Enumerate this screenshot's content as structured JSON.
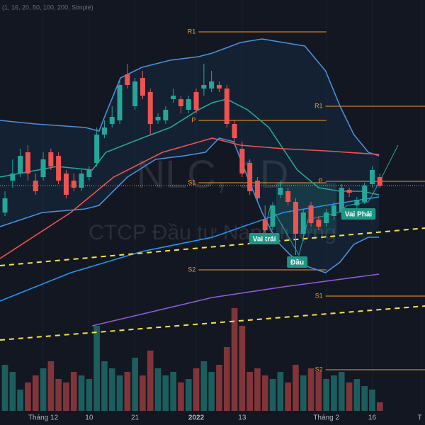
{
  "chart_data": {
    "type": "candlestick",
    "indicator_label": "(1, 16, 20, 50, 100, 200, Simple)",
    "watermark": "NLC, 1D",
    "watermark_sub": "CTCP Đầu tư Năng lượng",
    "up_color": "#26a69a",
    "down_color": "#ef5350",
    "ylim": [
      0,
      580
    ],
    "xlim": [
      -0.65,
      54.9
    ],
    "open": [
      280,
      325,
      335,
      365,
      325,
      330,
      365,
      360,
      335,
      325,
      315,
      330,
      350,
      390,
      405,
      410,
      475,
      430,
      470,
      450,
      410,
      410,
      440,
      440,
      425,
      450,
      455,
      455,
      460,
      455,
      405,
      370,
      350,
      325,
      270,
      260,
      305,
      310,
      295,
      250,
      290,
      270,
      265,
      275,
      280,
      312,
      290,
      295,
      320,
      330
    ],
    "high": [
      310,
      355,
      370,
      375,
      335,
      365,
      370,
      365,
      340,
      335,
      340,
      345,
      400,
      410,
      430,
      465,
      490,
      470,
      480,
      455,
      420,
      430,
      455,
      445,
      445,
      455,
      490,
      480,
      465,
      460,
      410,
      380,
      355,
      330,
      290,
      295,
      325,
      315,
      300,
      285,
      295,
      275,
      285,
      295,
      320,
      315,
      302,
      322,
      345,
      335
    ],
    "low": [
      275,
      315,
      330,
      325,
      305,
      325,
      340,
      320,
      300,
      310,
      310,
      325,
      345,
      385,
      400,
      405,
      455,
      425,
      440,
      390,
      405,
      405,
      435,
      420,
      420,
      420,
      445,
      450,
      450,
      400,
      380,
      330,
      305,
      295,
      250,
      255,
      300,
      290,
      220,
      240,
      260,
      255,
      260,
      270,
      275,
      302,
      285,
      292,
      315,
      315
    ],
    "close": [
      300,
      335,
      360,
      335,
      310,
      355,
      345,
      325,
      305,
      315,
      335,
      340,
      390,
      400,
      415,
      460,
      460,
      465,
      445,
      405,
      415,
      425,
      445,
      430,
      440,
      425,
      460,
      465,
      455,
      405,
      385,
      335,
      310,
      300,
      255,
      290,
      315,
      295,
      250,
      280,
      265,
      260,
      280,
      290,
      315,
      308,
      298,
      318,
      340,
      318
    ],
    "volume": [
      65,
      55,
      30,
      40,
      50,
      60,
      70,
      45,
      40,
      55,
      50,
      45,
      120,
      70,
      60,
      50,
      55,
      75,
      50,
      85,
      60,
      50,
      55,
      40,
      45,
      60,
      70,
      55,
      65,
      90,
      145,
      120,
      55,
      60,
      50,
      45,
      55,
      40,
      65,
      50,
      60,
      55,
      45,
      50,
      55,
      40,
      45,
      35,
      30,
      12
    ],
    "x_labels": [
      {
        "x": 5,
        "label": "Tháng 12"
      },
      {
        "x": 11,
        "label": "10"
      },
      {
        "x": 17,
        "label": "21"
      },
      {
        "x": 25,
        "label": "2022"
      },
      {
        "x": 31,
        "label": "13"
      },
      {
        "x": 42,
        "label": "Tháng 2"
      },
      {
        "x": 48,
        "label": "16"
      },
      {
        "x": 54.5,
        "label": "T"
      }
    ],
    "lines": [
      {
        "color": "#4a90d9",
        "dash": false,
        "x": [
          -0.65,
          4,
          10.5,
          12.3,
          13.2,
          15.1,
          17.9,
          21.6,
          25.3,
          27.1,
          30.8,
          33.6,
          36.4,
          39.2,
          41.9,
          43.8,
          45.6,
          47.5,
          48.9
        ],
        "values": [
          410,
          405,
          400,
          395,
          420,
          470,
          485,
          495,
          500,
          505,
          520,
          525,
          520,
          515,
          480,
          430,
          390,
          365,
          360
        ]
      },
      {
        "color": "#4a90d9",
        "dash": false,
        "x": [
          -0.65,
          4.9,
          10.5,
          12.3,
          16,
          19.7,
          23.4,
          26.2,
          28,
          29.9,
          31.7,
          33.6,
          35.5,
          37.3,
          39.2,
          41.9,
          43.8,
          45.6,
          47.5,
          48.9
        ],
        "values": [
          260,
          280,
          285,
          290,
          330,
          355,
          360,
          365,
          385,
          380,
          330,
          280,
          240,
          220,
          205,
          195,
          210,
          235,
          245,
          245
        ]
      },
      {
        "color": "#26a69a",
        "dash": false,
        "x": [
          -0.65,
          6.8,
          11.4,
          13.2,
          17.9,
          21.6,
          25.3,
          27.1,
          29,
          31.7,
          34.5,
          38.2,
          41,
          43.8,
          46.6,
          48.9
        ],
        "values": [
          330,
          345,
          340,
          365,
          385,
          400,
          425,
          435,
          440,
          425,
          400,
          340,
          315,
          310,
          310,
          305
        ]
      },
      {
        "color": "#ef5350",
        "dash": false,
        "x": [
          -0.65,
          8.6,
          14.2,
          20.6,
          27.1,
          30.8,
          36.4,
          41.9,
          48.9
        ],
        "values": [
          215,
          280,
          330,
          365,
          385,
          375,
          370,
          367,
          362
        ]
      },
      {
        "color": "#2196f3",
        "dash": false,
        "x": [
          -0.65,
          8.6,
          17.9,
          27.1,
          36.4,
          41.9,
          48.9
        ],
        "values": [
          155,
          195,
          225,
          245,
          280,
          290,
          302
        ]
      },
      {
        "color": "#8e5cd9",
        "dash": false,
        "x": [
          11.4,
          27.1,
          36.4,
          48.9
        ],
        "values": [
          120,
          160,
          175,
          193
        ]
      },
      {
        "color": "#f5e642",
        "dash": true,
        "x": [
          -0.65,
          54.9
        ],
        "values": [
          205,
          258
        ]
      },
      {
        "color": "#f5e642",
        "dash": true,
        "x": [
          -0.65,
          54.9
        ],
        "values": [
          100,
          148
        ]
      }
    ],
    "levels": [
      {
        "label": "R1",
        "value": 535,
        "from": 25.3,
        "to": 42
      },
      {
        "label": "P",
        "value": 410,
        "from": 25.3,
        "to": 42
      },
      {
        "label": "S1",
        "value": 322,
        "from": 25.3,
        "to": 42
      },
      {
        "label": "S2",
        "value": 199,
        "from": 25.3,
        "to": 42
      },
      {
        "label": "R1",
        "value": 430,
        "from": 41.9,
        "to": 54.9
      },
      {
        "label": "P",
        "value": 324,
        "from": 41.9,
        "to": 54.9
      },
      {
        "label": "S1",
        "value": 162,
        "from": 41.9,
        "to": 54.9
      },
      {
        "label": "S2",
        "value": 58,
        "from": 41.9,
        "to": 54.9
      }
    ],
    "annotations": [
      {
        "text": "Vai trái",
        "x": 33.9,
        "value": 243
      },
      {
        "text": "Đầu",
        "x": 38.2,
        "value": 210
      },
      {
        "text": "Vai Phải",
        "x": 46.2,
        "value": 278
      }
    ]
  }
}
